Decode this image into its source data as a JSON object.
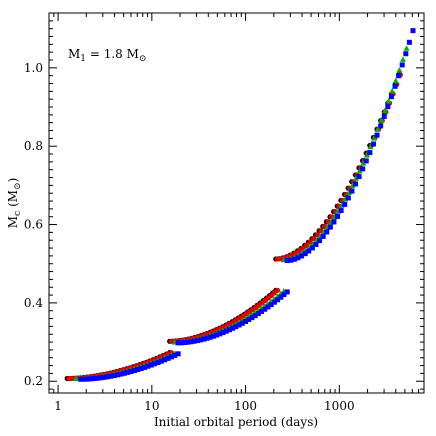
{
  "chart_data": {
    "type": "scatter",
    "title": "",
    "xlabel": "Initial orbital period (days)",
    "ylabel": "M",
    "ylabel_subscript": "c",
    "ylabel_unit": "(M",
    "ylabel_unit_close": ")",
    "annotation": {
      "text": "M",
      "subscript": "1",
      "rest": " = 1.8 M"
    },
    "xscale": "log",
    "xlim": [
      0.8,
      8000
    ],
    "ylim": [
      0.17,
      1.14
    ],
    "x_ticks": [
      1,
      10,
      100,
      1000
    ],
    "x_tick_labels": [
      "1",
      "10",
      "100",
      "1000"
    ],
    "y_ticks": [
      0.2,
      0.4,
      0.6,
      0.8,
      1.0
    ],
    "y_tick_labels": [
      "0.2",
      "0.4",
      "0.6",
      "0.8",
      "1.0"
    ],
    "series": [
      {
        "marker": "circle",
        "color": "#000000",
        "x_offset": 0.0,
        "segments": [
          {
            "x_start": 1.25,
            "x_end": 15.5,
            "n": 32,
            "y_start": 0.207,
            "y_end": 0.273
          },
          {
            "x_start": 15.5,
            "x_end": 210,
            "n": 35,
            "y_start": 0.302,
            "y_end": 0.432
          },
          {
            "x_start": 210,
            "x_end": 4300,
            "n": 35,
            "y_start": 0.512,
            "y_end": 0.982
          }
        ]
      },
      {
        "marker": "circle",
        "color": "#e00000",
        "x_offset": 0.035,
        "segments": [
          {
            "x_start": 1.25,
            "x_end": 15.5,
            "n": 32,
            "y_start": 0.207,
            "y_end": 0.273
          },
          {
            "x_start": 15.5,
            "x_end": 210,
            "n": 35,
            "y_start": 0.302,
            "y_end": 0.432
          },
          {
            "x_start": 210,
            "x_end": 4300,
            "n": 35,
            "y_start": 0.512,
            "y_end": 0.982
          }
        ]
      },
      {
        "marker": "triangle",
        "color": "#00b000",
        "x_offset": 0.055,
        "segments": [
          {
            "x_start": 1.45,
            "x_end": 16.5,
            "n": 30,
            "y_start": 0.207,
            "y_end": 0.271
          },
          {
            "x_start": 16.5,
            "x_end": 240,
            "n": 35,
            "y_start": 0.3,
            "y_end": 0.43
          },
          {
            "x_start": 240,
            "x_end": 4900,
            "n": 35,
            "y_start": 0.51,
            "y_end": 1.05
          }
        ]
      },
      {
        "marker": "square",
        "color": "#0000ff",
        "x_offset": 0.075,
        "segments": [
          {
            "x_start": 1.6,
            "x_end": 17.5,
            "n": 30,
            "y_start": 0.205,
            "y_end": 0.27
          },
          {
            "x_start": 17.5,
            "x_end": 255,
            "n": 35,
            "y_start": 0.298,
            "y_end": 0.428
          },
          {
            "x_start": 255,
            "x_end": 5600,
            "n": 36,
            "y_start": 0.508,
            "y_end": 1.095
          }
        ]
      }
    ]
  }
}
